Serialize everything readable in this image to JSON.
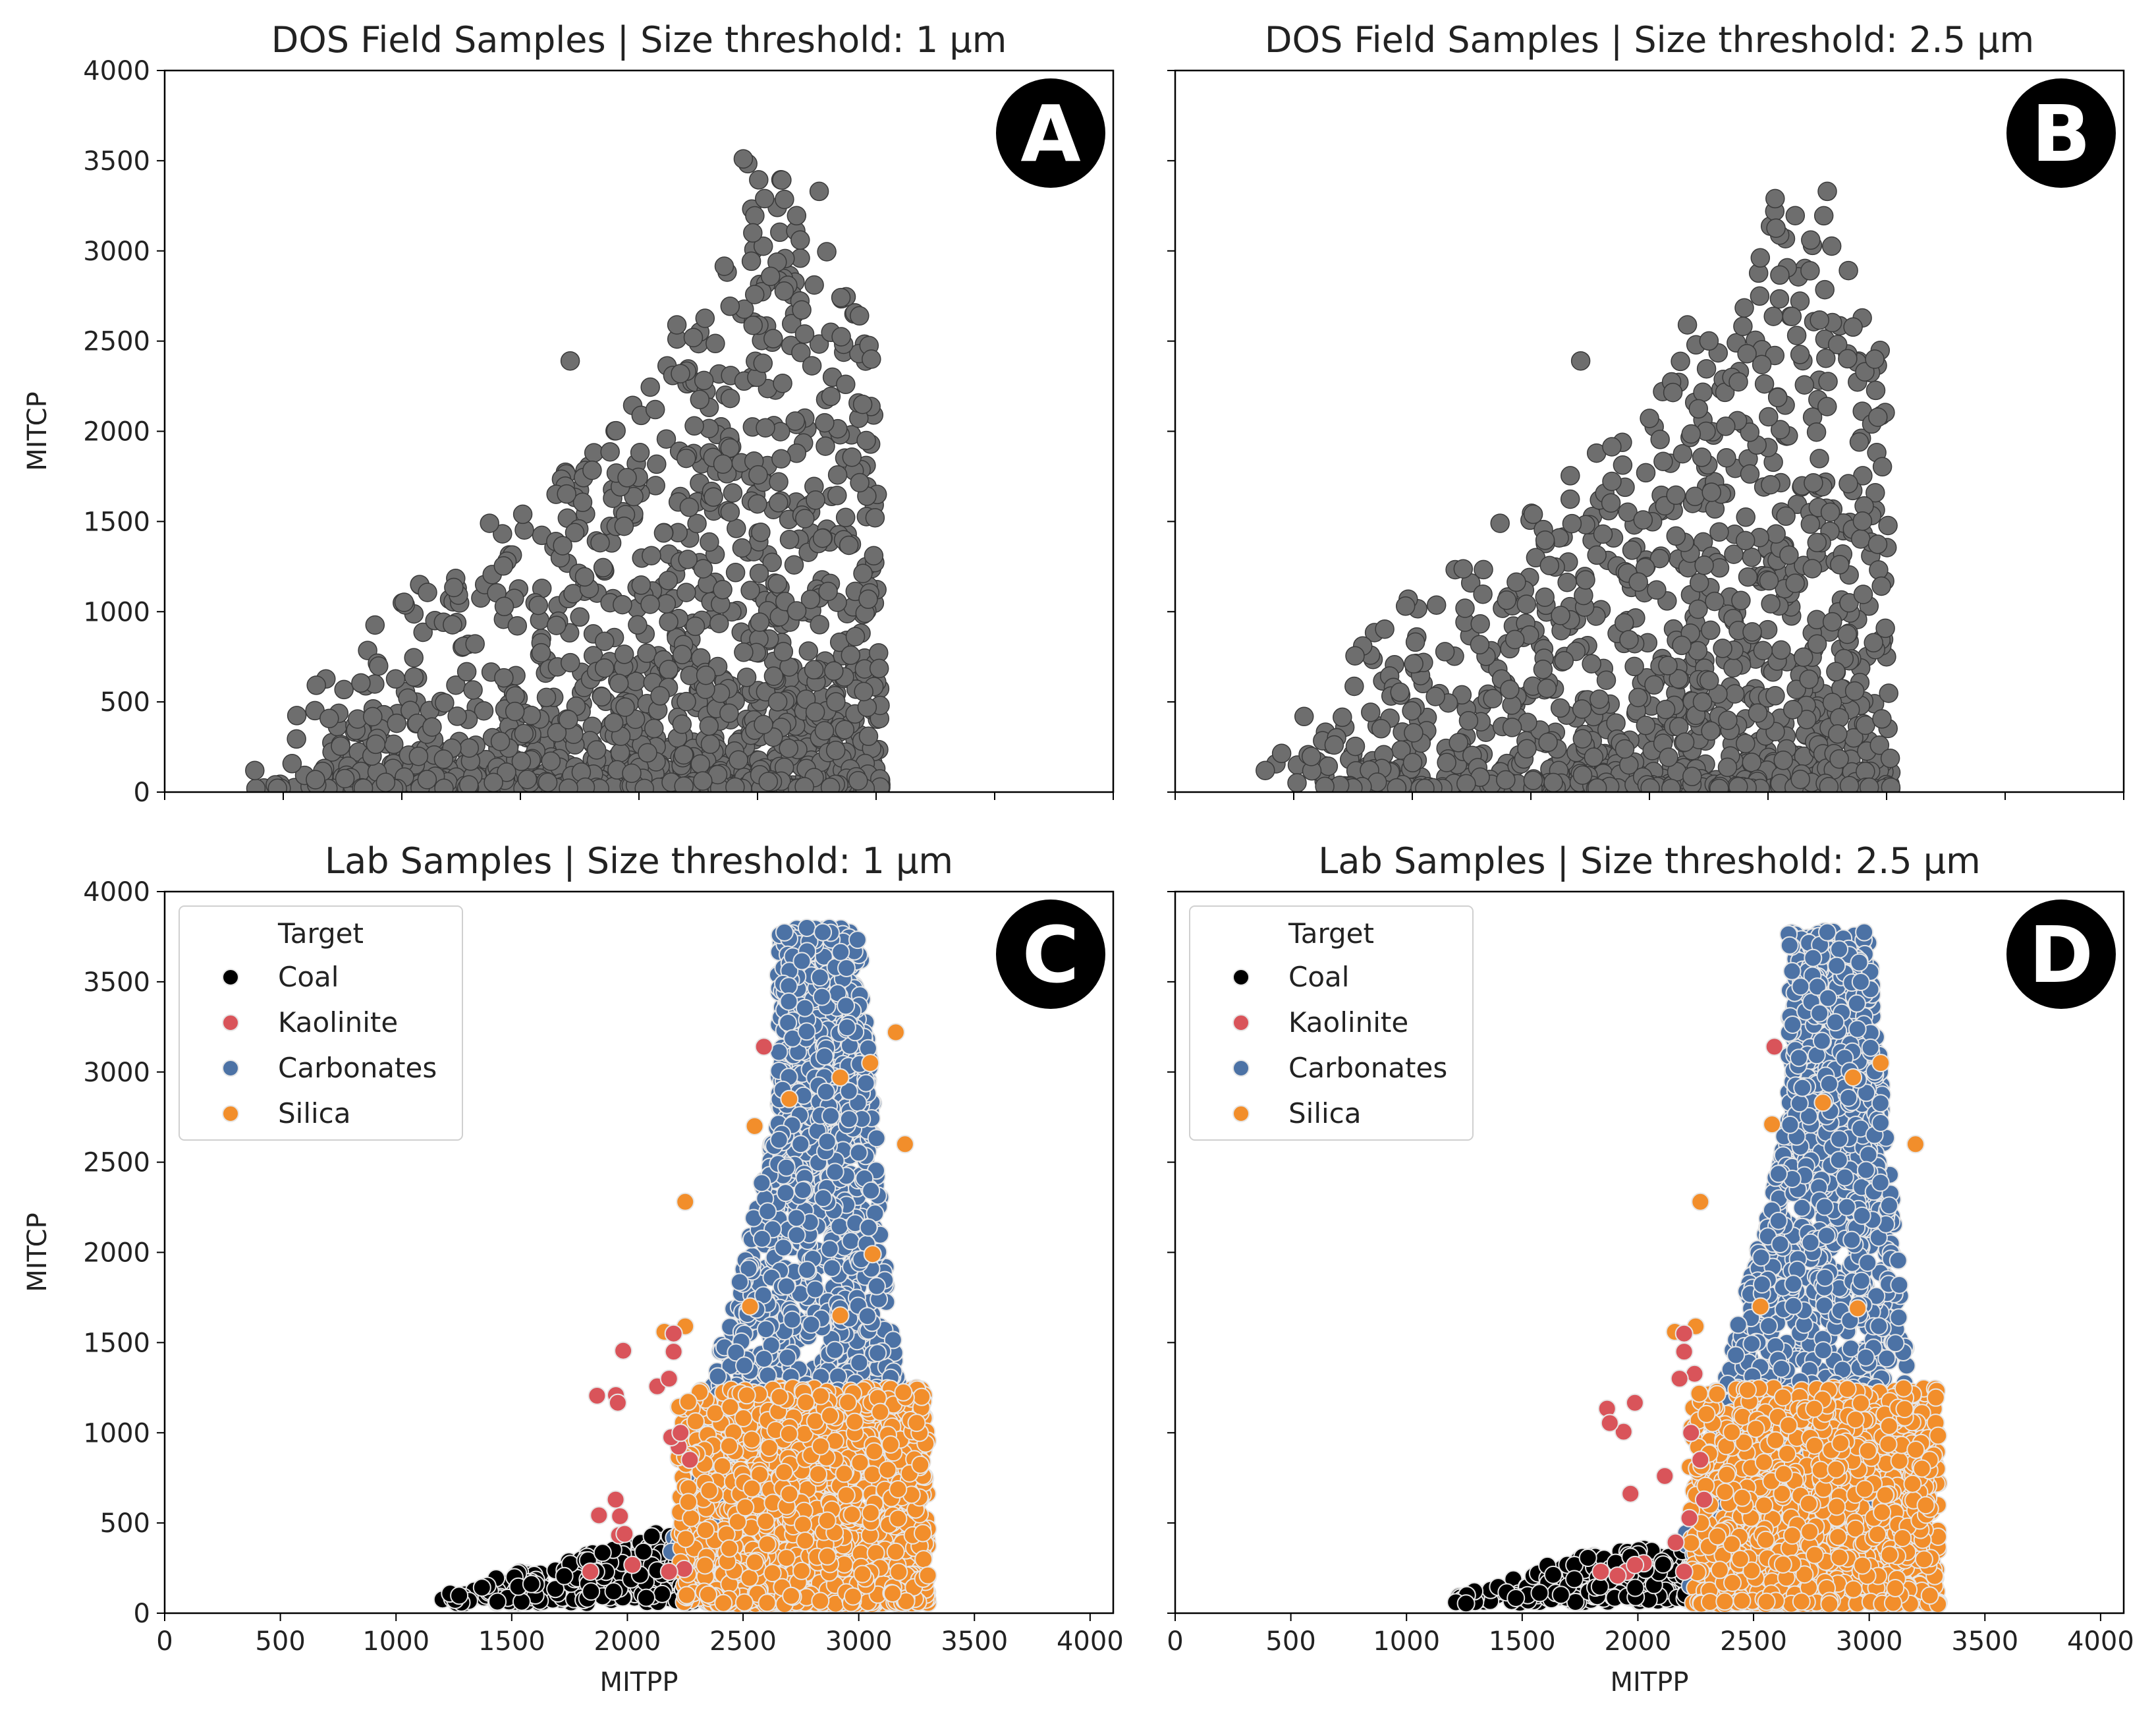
{
  "figure": {
    "background": "#ffffff",
    "marker_edge": "#e6e6e6"
  },
  "chart_data": [
    {
      "type": "scatter",
      "panel": "A",
      "title": "DOS Field Samples | Size threshold: 1 µm",
      "xlabel": "",
      "ylabel": "MITCP",
      "xlim": [
        0,
        4000
      ],
      "ylim": [
        0,
        4000
      ],
      "xticks": [
        0,
        500,
        1000,
        1500,
        2000,
        2500,
        3000,
        3500,
        4000
      ],
      "yticks": [
        0,
        500,
        1000,
        1500,
        2000,
        2500,
        3000,
        3500,
        4000
      ],
      "show_xtick_labels": false,
      "show_ytick_labels": true,
      "legend": null,
      "series": [
        {
          "color": "#6e6e6e",
          "seed": 11,
          "count": 1400,
          "x_range": [
            380,
            3020
          ],
          "y_max_envelope": [
            [
              380,
              150
            ],
            [
              700,
              700
            ],
            [
              1000,
              1100
            ],
            [
              1500,
              1550
            ],
            [
              2000,
              2200
            ],
            [
              2400,
              3000
            ],
            [
              2450,
              3520
            ],
            [
              2700,
              3330
            ],
            [
              2900,
              2700
            ],
            [
              3000,
              2400
            ],
            [
              3020,
              100
            ]
          ],
          "cluster": "low",
          "highlight_points": [
            [
              2440,
              3510
            ],
            [
              2530,
              3290
            ],
            [
              2760,
              3330
            ],
            [
              2480,
              3100
            ],
            [
              2680,
              3060
            ],
            [
              2160,
              2590
            ],
            [
              1710,
              2390
            ],
            [
              2930,
              2640
            ],
            [
              2980,
              2400
            ],
            [
              1510,
              1540
            ],
            [
              1370,
              1490
            ],
            [
              380,
              120
            ]
          ]
        }
      ]
    },
    {
      "type": "scatter",
      "panel": "B",
      "title": "DOS Field Samples | Size threshold: 2.5 µm",
      "xlabel": "",
      "ylabel": "",
      "xlim": [
        0,
        4000
      ],
      "ylim": [
        0,
        4000
      ],
      "xticks": [
        0,
        500,
        1000,
        1500,
        2000,
        2500,
        3000,
        3500,
        4000
      ],
      "yticks": [
        0,
        500,
        1000,
        1500,
        2000,
        2500,
        3000,
        3500,
        4000
      ],
      "show_xtick_labels": false,
      "show_ytick_labels": false,
      "legend": null,
      "series": [
        {
          "color": "#6e6e6e",
          "seed": 23,
          "count": 1250,
          "x_range": [
            380,
            3020
          ],
          "y_max_envelope": [
            [
              380,
              150
            ],
            [
              700,
              700
            ],
            [
              1000,
              1100
            ],
            [
              1500,
              1550
            ],
            [
              2000,
              2200
            ],
            [
              2400,
              2800
            ],
            [
              2530,
              3300
            ],
            [
              2740,
              3330
            ],
            [
              2900,
              2700
            ],
            [
              3000,
              2400
            ],
            [
              3020,
              100
            ]
          ],
          "cluster": "low",
          "highlight_points": [
            [
              2530,
              3290
            ],
            [
              2750,
              3330
            ],
            [
              2680,
              3060
            ],
            [
              2160,
              2590
            ],
            [
              1710,
              2390
            ],
            [
              2950,
              2400
            ],
            [
              1510,
              1540
            ],
            [
              1370,
              1490
            ],
            [
              380,
              120
            ]
          ]
        }
      ]
    },
    {
      "type": "scatter",
      "panel": "C",
      "title": "Lab Samples | Size threshold: 1 µm",
      "xlabel": "MITPP",
      "ylabel": "MITCP",
      "xlim": [
        0,
        4100
      ],
      "ylim": [
        0,
        4000
      ],
      "xticks": [
        0,
        500,
        1000,
        1500,
        2000,
        2500,
        3000,
        3500,
        4000
      ],
      "yticks": [
        0,
        500,
        1000,
        1500,
        2000,
        2500,
        3000,
        3500,
        4000
      ],
      "show_xtick_labels": true,
      "show_ytick_labels": true,
      "legend": {
        "title": "Target",
        "placement": "top-left",
        "entries": [
          {
            "label": "Coal",
            "color": "#000000"
          },
          {
            "label": "Kaolinite",
            "color": "#d9545a"
          },
          {
            "label": "Carbonates",
            "color": "#4c72a5"
          },
          {
            "label": "Silica",
            "color": "#f28e2b"
          }
        ]
      },
      "series": [
        {
          "name": "Coal",
          "color": "#000000",
          "seed": 31,
          "count": 420,
          "region": {
            "x": [
              1150,
              2550
            ],
            "y": [
              50,
              600
            ],
            "shape": "wedge"
          }
        },
        {
          "name": "Carbonates",
          "color": "#4c72a5",
          "seed": 37,
          "count": 1600,
          "region": {
            "x": [
              2150,
              3250
            ],
            "y": [
              150,
              3800
            ],
            "shape": "tower"
          }
        },
        {
          "name": "Silica",
          "color": "#f28e2b",
          "seed": 41,
          "count": 1500,
          "region": {
            "x": [
              2100,
              3300
            ],
            "y": [
              50,
              1250
            ],
            "shape": "block"
          },
          "highlight_points": [
            [
              2250,
              2280
            ],
            [
              2550,
              2700
            ],
            [
              2700,
              2850
            ],
            [
              2920,
              2970
            ],
            [
              3050,
              3050
            ],
            [
              3160,
              3220
            ],
            [
              3200,
              2600
            ],
            [
              3060,
              1990
            ],
            [
              2160,
              1560
            ],
            [
              2250,
              1590
            ],
            [
              2920,
              1650
            ],
            [
              2530,
              1700
            ]
          ]
        },
        {
          "name": "Kaolinite",
          "color": "#d9545a",
          "seed": 43,
          "count": 14,
          "region": {
            "x": [
              1850,
              2300
            ],
            "y": [
              200,
              1500
            ],
            "shape": "sparse"
          },
          "highlight_points": [
            [
              2590,
              3140
            ],
            [
              1840,
              230
            ],
            [
              2180,
              230
            ],
            [
              2200,
              1450
            ],
            [
              2180,
              1300
            ],
            [
              2230,
              1000
            ],
            [
              2270,
              850
            ],
            [
              2200,
              1550
            ]
          ]
        }
      ]
    },
    {
      "type": "scatter",
      "panel": "D",
      "title": "Lab Samples | Size threshold: 2.5 µm",
      "xlabel": "MITPP",
      "ylabel": "",
      "xlim": [
        0,
        4100
      ],
      "ylim": [
        0,
        4000
      ],
      "xticks": [
        0,
        500,
        1000,
        1500,
        2000,
        2500,
        3000,
        3500,
        4000
      ],
      "yticks": [
        0,
        500,
        1000,
        1500,
        2000,
        2500,
        3000,
        3500,
        4000
      ],
      "show_xtick_labels": true,
      "show_ytick_labels": false,
      "legend": {
        "title": "Target",
        "placement": "top-left",
        "entries": [
          {
            "label": "Coal",
            "color": "#000000"
          },
          {
            "label": "Kaolinite",
            "color": "#d9545a"
          },
          {
            "label": "Carbonates",
            "color": "#4c72a5"
          },
          {
            "label": "Silica",
            "color": "#f28e2b"
          }
        ]
      },
      "series": [
        {
          "name": "Coal",
          "color": "#000000",
          "seed": 53,
          "count": 400,
          "region": {
            "x": [
              1150,
              2550
            ],
            "y": [
              50,
              600
            ],
            "shape": "wedge"
          }
        },
        {
          "name": "Carbonates",
          "color": "#4c72a5",
          "seed": 59,
          "count": 1500,
          "region": {
            "x": [
              2150,
              3250
            ],
            "y": [
              150,
              3780
            ],
            "shape": "tower"
          }
        },
        {
          "name": "Silica",
          "color": "#f28e2b",
          "seed": 61,
          "count": 1450,
          "region": {
            "x": [
              2100,
              3300
            ],
            "y": [
              50,
              1250
            ],
            "shape": "block"
          },
          "highlight_points": [
            [
              2270,
              2280
            ],
            [
              2580,
              2710
            ],
            [
              2800,
              2830
            ],
            [
              2930,
              2970
            ],
            [
              3050,
              3050
            ],
            [
              3200,
              2600
            ],
            [
              2160,
              1560
            ],
            [
              2250,
              1590
            ],
            [
              2950,
              1690
            ],
            [
              2530,
              1700
            ]
          ]
        },
        {
          "name": "Kaolinite",
          "color": "#d9545a",
          "seed": 67,
          "count": 14,
          "region": {
            "x": [
              1850,
              2300
            ],
            "y": [
              200,
              1500
            ],
            "shape": "sparse"
          },
          "highlight_points": [
            [
              2590,
              3140
            ],
            [
              1840,
              230
            ],
            [
              2200,
              230
            ],
            [
              2200,
              1450
            ],
            [
              2180,
              1300
            ],
            [
              2230,
              1000
            ],
            [
              2270,
              850
            ],
            [
              2200,
              1550
            ]
          ]
        }
      ]
    }
  ]
}
